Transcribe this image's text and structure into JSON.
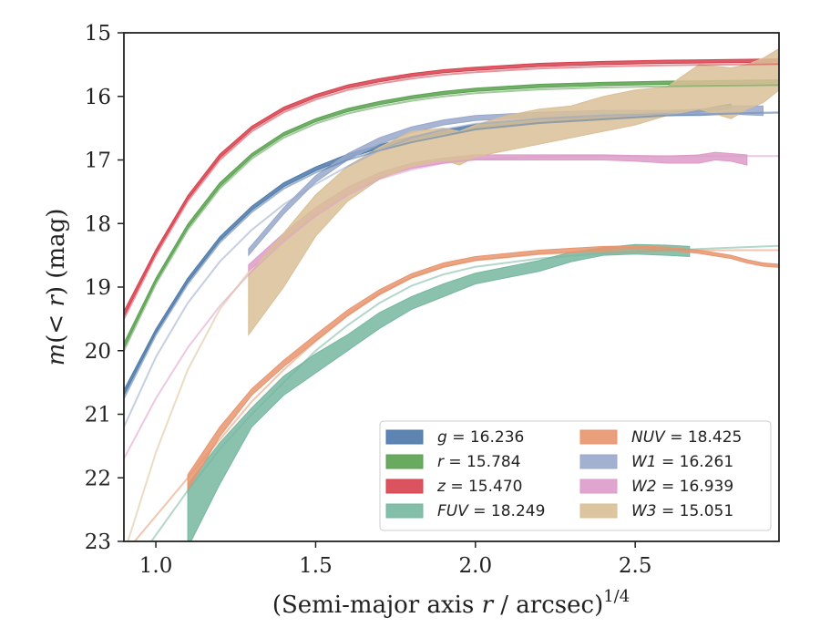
{
  "chart_data": {
    "type": "line",
    "xlabel": "(Semi-major axis r / arcsec)",
    "xlabel_parts": {
      "pre": "(Semi-major axis ",
      "var": "r",
      "post": " / arcsec)",
      "sup": "1/4"
    },
    "ylabel": "m(< r) (mag)",
    "ylabel_parts": {
      "var": "m",
      "open": "(",
      "lt": "< ",
      "r": "r",
      "close": ")",
      "unit": " (mag)"
    },
    "xlim": [
      0.9,
      2.95
    ],
    "ylim": [
      23,
      15
    ],
    "y_inverted": true,
    "grid": false,
    "legend_placement": "lower-right",
    "x_ticks": [
      1.0,
      1.5,
      2.0,
      2.5
    ],
    "x_tick_labels": [
      "1.0",
      "1.5",
      "2.0",
      "2.5"
    ],
    "y_ticks": [
      15,
      16,
      17,
      18,
      19,
      20,
      21,
      22,
      23
    ],
    "y_tick_labels": [
      "15",
      "16",
      "17",
      "18",
      "19",
      "20",
      "21",
      "22",
      "23"
    ],
    "series": [
      {
        "key": "g",
        "band": "g",
        "value": "16.236",
        "color": "#4c78a8",
        "model_x": [
          0.9,
          1.0,
          1.1,
          1.2,
          1.3,
          1.4,
          1.5,
          1.6,
          1.7,
          1.8,
          1.9,
          2.0,
          2.2,
          2.4,
          2.6,
          2.8,
          2.95
        ],
        "model_y": [
          20.75,
          19.75,
          18.95,
          18.3,
          17.82,
          17.45,
          17.2,
          17.0,
          16.85,
          16.72,
          16.62,
          16.52,
          16.42,
          16.36,
          16.3,
          16.27,
          16.25
        ],
        "band_x": [
          0.9,
          1.0,
          1.1,
          1.2,
          1.3,
          1.4,
          1.5,
          1.6,
          1.7,
          1.8,
          1.9,
          2.0,
          2.2,
          2.4,
          2.6,
          2.7,
          2.8
        ],
        "band_lo": [
          20.7,
          19.72,
          18.92,
          18.27,
          17.79,
          17.42,
          17.17,
          16.97,
          16.82,
          16.69,
          16.59,
          16.5,
          16.4,
          16.34,
          16.29,
          16.25,
          16.18
        ],
        "band_hi": [
          20.62,
          19.66,
          18.86,
          18.21,
          17.73,
          17.36,
          17.11,
          16.91,
          16.76,
          16.63,
          16.53,
          16.44,
          16.35,
          16.29,
          16.25,
          16.21,
          16.12
        ]
      },
      {
        "key": "r",
        "band": "r",
        "value": "15.784",
        "color": "#59a14f",
        "model_x": [
          0.9,
          1.0,
          1.1,
          1.2,
          1.3,
          1.4,
          1.5,
          1.6,
          1.7,
          1.8,
          1.9,
          2.0,
          2.2,
          2.4,
          2.6,
          2.8,
          2.95
        ],
        "model_y": [
          20.0,
          18.95,
          18.1,
          17.45,
          16.98,
          16.65,
          16.43,
          16.27,
          16.16,
          16.07,
          16.0,
          15.95,
          15.89,
          15.86,
          15.84,
          15.83,
          15.82
        ],
        "band_x": [
          0.9,
          1.0,
          1.1,
          1.2,
          1.3,
          1.4,
          1.5,
          1.6,
          1.7,
          1.8,
          1.9,
          2.0,
          2.2,
          2.4,
          2.6,
          2.8,
          2.95
        ],
        "band_lo": [
          19.96,
          18.92,
          18.07,
          17.42,
          16.95,
          16.62,
          16.4,
          16.24,
          16.13,
          16.04,
          15.97,
          15.92,
          15.86,
          15.83,
          15.81,
          15.8,
          15.79
        ],
        "band_hi": [
          19.88,
          18.86,
          18.01,
          17.36,
          16.9,
          16.57,
          16.35,
          16.19,
          16.08,
          15.99,
          15.92,
          15.87,
          15.81,
          15.78,
          15.76,
          15.75,
          15.74
        ]
      },
      {
        "key": "z",
        "band": "z",
        "value": "15.470",
        "color": "#d6404e",
        "model_x": [
          0.9,
          1.0,
          1.1,
          1.2,
          1.3,
          1.4,
          1.5,
          1.6,
          1.7,
          1.8,
          1.9,
          2.0,
          2.2,
          2.4,
          2.6,
          2.8,
          2.95
        ],
        "model_y": [
          19.5,
          18.5,
          17.65,
          17.0,
          16.55,
          16.25,
          16.05,
          15.9,
          15.8,
          15.72,
          15.66,
          15.62,
          15.56,
          15.53,
          15.51,
          15.5,
          15.49
        ],
        "band_x": [
          0.9,
          1.0,
          1.1,
          1.2,
          1.3,
          1.4,
          1.5,
          1.6,
          1.7,
          1.8,
          1.9,
          2.0,
          2.2,
          2.4,
          2.6,
          2.8,
          2.95
        ],
        "band_lo": [
          19.46,
          18.47,
          17.62,
          16.97,
          16.52,
          16.22,
          16.02,
          15.87,
          15.77,
          15.69,
          15.63,
          15.59,
          15.53,
          15.5,
          15.48,
          15.47,
          15.46
        ],
        "band_hi": [
          19.38,
          18.41,
          17.56,
          16.91,
          16.47,
          16.17,
          15.97,
          15.82,
          15.72,
          15.64,
          15.58,
          15.54,
          15.48,
          15.45,
          15.43,
          15.42,
          15.41
        ]
      },
      {
        "key": "FUV",
        "band": "FUV",
        "value": "18.249",
        "color": "#76b7a0",
        "model_x": [
          0.9,
          1.0,
          1.1,
          1.2,
          1.3,
          1.4,
          1.5,
          1.6,
          1.7,
          1.8,
          1.9,
          2.0,
          2.2,
          2.4,
          2.6,
          2.8,
          2.95
        ],
        "model_y": [
          23.6,
          22.9,
          22.2,
          21.55,
          21.0,
          20.5,
          20.0,
          19.6,
          19.25,
          18.98,
          18.8,
          18.68,
          18.55,
          18.47,
          18.42,
          18.38,
          18.35
        ],
        "band_x": [
          1.1,
          1.2,
          1.3,
          1.4,
          1.5,
          1.6,
          1.7,
          1.8,
          1.9,
          2.0,
          2.1,
          2.2,
          2.3,
          2.4,
          2.5,
          2.6,
          2.67
        ],
        "band_lo": [
          23.1,
          22.1,
          21.2,
          20.7,
          20.35,
          20.0,
          19.65,
          19.35,
          19.15,
          18.95,
          18.85,
          18.75,
          18.6,
          18.5,
          18.48,
          18.5,
          18.52
        ],
        "band_hi": [
          22.1,
          21.45,
          20.9,
          20.4,
          20.05,
          19.75,
          19.4,
          19.15,
          18.95,
          18.78,
          18.68,
          18.58,
          18.45,
          18.38,
          18.33,
          18.34,
          18.36
        ]
      },
      {
        "key": "NUV",
        "band": "NUV",
        "value": "18.425",
        "color": "#e8956e",
        "model_x": [
          0.9,
          1.0,
          1.1,
          1.2,
          1.3,
          1.4,
          1.5,
          1.6,
          1.7,
          1.8,
          1.9,
          2.0,
          2.2,
          2.4,
          2.6,
          2.8,
          2.95
        ],
        "model_y": [
          23.2,
          22.6,
          22.0,
          21.4,
          20.8,
          20.3,
          19.85,
          19.45,
          19.1,
          18.85,
          18.68,
          18.58,
          18.48,
          18.44,
          18.43,
          18.42,
          18.42
        ],
        "band_x": [
          1.1,
          1.2,
          1.3,
          1.4,
          1.5,
          1.6,
          1.7,
          1.8,
          1.9,
          2.0,
          2.2,
          2.4,
          2.5,
          2.6,
          2.7,
          2.8,
          2.85,
          2.9,
          2.95
        ],
        "band_lo": [
          22.2,
          21.35,
          20.7,
          20.25,
          19.85,
          19.45,
          19.12,
          18.86,
          18.69,
          18.58,
          18.48,
          18.42,
          18.4,
          18.42,
          18.47,
          18.55,
          18.62,
          18.67,
          18.69
        ],
        "band_hi": [
          21.95,
          21.2,
          20.6,
          20.15,
          19.75,
          19.36,
          19.04,
          18.79,
          18.62,
          18.52,
          18.42,
          18.36,
          18.35,
          18.37,
          18.42,
          18.5,
          18.57,
          18.62,
          18.64
        ]
      },
      {
        "key": "W1",
        "band": "W1",
        "value": "16.261",
        "color": "#98a8cb",
        "model_x": [
          0.9,
          1.0,
          1.1,
          1.2,
          1.3,
          1.4,
          1.5,
          1.6,
          1.7,
          1.8,
          1.9,
          2.0,
          2.2,
          2.4,
          2.6,
          2.8,
          2.95
        ],
        "model_y": [
          21.2,
          20.1,
          19.25,
          18.6,
          18.1,
          17.7,
          17.38,
          17.1,
          16.85,
          16.65,
          16.52,
          16.43,
          16.35,
          16.3,
          16.28,
          16.27,
          16.26
        ],
        "band_x": [
          1.29,
          1.4,
          1.5,
          1.6,
          1.7,
          1.8,
          1.9,
          2.0,
          2.2,
          2.4,
          2.6,
          2.7,
          2.8,
          2.9
        ],
        "band_lo": [
          18.5,
          17.85,
          17.35,
          17.0,
          16.75,
          16.57,
          16.45,
          16.38,
          16.33,
          16.3,
          16.3,
          16.3,
          16.28,
          16.3
        ],
        "band_hi": [
          18.4,
          17.75,
          17.25,
          16.9,
          16.65,
          16.48,
          16.37,
          16.3,
          16.25,
          16.22,
          16.22,
          16.2,
          16.15,
          16.15
        ]
      },
      {
        "key": "W2",
        "band": "W2",
        "value": "16.939",
        "color": "#dd9bc9",
        "model_x": [
          0.9,
          1.0,
          1.1,
          1.2,
          1.3,
          1.4,
          1.5,
          1.6,
          1.7,
          1.8,
          1.9,
          2.0,
          2.2,
          2.4,
          2.6,
          2.8,
          2.95
        ],
        "model_y": [
          21.7,
          20.75,
          19.95,
          19.3,
          18.75,
          18.28,
          17.88,
          17.55,
          17.3,
          17.15,
          17.05,
          16.99,
          16.95,
          16.94,
          16.94,
          16.94,
          16.94
        ],
        "band_x": [
          1.29,
          1.4,
          1.5,
          1.6,
          1.7,
          1.8,
          1.9,
          2.0,
          2.2,
          2.4,
          2.5,
          2.6,
          2.7,
          2.75,
          2.8,
          2.85
        ],
        "band_lo": [
          18.75,
          18.25,
          17.85,
          17.52,
          17.28,
          17.13,
          17.05,
          17.0,
          17.0,
          17.0,
          17.02,
          17.05,
          17.05,
          17.0,
          17.02,
          17.08
        ],
        "band_hi": [
          18.65,
          18.15,
          17.75,
          17.43,
          17.2,
          17.05,
          16.97,
          16.92,
          16.92,
          16.92,
          16.93,
          16.94,
          16.92,
          16.88,
          16.9,
          16.92
        ]
      },
      {
        "key": "W3",
        "band": "W3",
        "value": "15.051",
        "color": "#d9bf96",
        "model_x": [
          0.9,
          1.0,
          1.1,
          1.2,
          1.3
        ],
        "model_y": [
          23.2,
          21.6,
          20.3,
          19.35,
          18.7
        ],
        "band_x": [
          1.29,
          1.4,
          1.5,
          1.6,
          1.7,
          1.8,
          1.9,
          1.95,
          2.0,
          2.1,
          2.2,
          2.3,
          2.4,
          2.5,
          2.6,
          2.7,
          2.8,
          2.85,
          2.9,
          2.95
        ],
        "band_lo": [
          19.75,
          19.0,
          18.2,
          17.65,
          17.3,
          17.1,
          17.0,
          17.08,
          16.95,
          16.85,
          16.75,
          16.65,
          16.55,
          16.45,
          16.3,
          16.2,
          16.35,
          16.2,
          16.1,
          15.9
        ],
        "band_hi": [
          18.8,
          18.15,
          17.55,
          17.1,
          16.8,
          16.55,
          16.5,
          16.55,
          16.45,
          16.3,
          16.2,
          16.15,
          16.0,
          15.9,
          15.85,
          15.5,
          15.55,
          15.5,
          15.4,
          15.25
        ]
      }
    ]
  }
}
